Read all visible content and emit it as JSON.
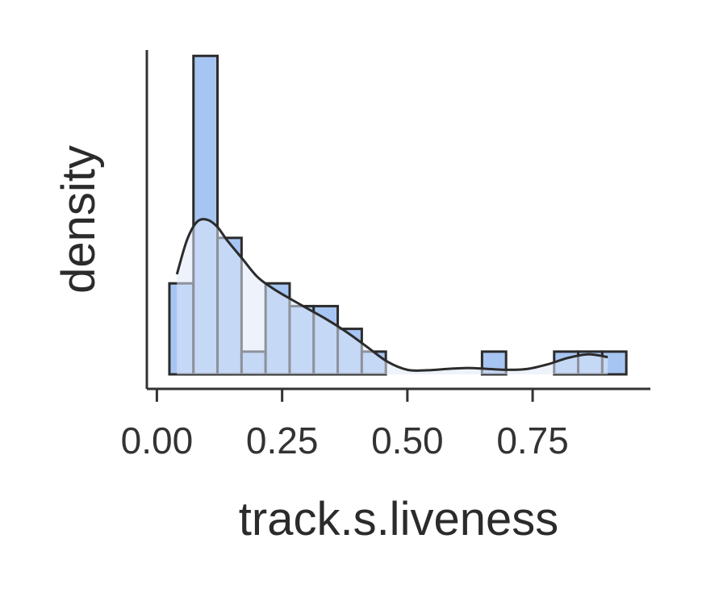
{
  "chart_data": {
    "type": "bar",
    "subtype": "histogram",
    "xlabel": "track.s.liveness",
    "ylabel": "density",
    "xlim": [
      -0.02,
      0.985
    ],
    "ylim": [
      0,
      7.2
    ],
    "x_ticks": [
      0.0,
      0.25,
      0.5,
      0.75
    ],
    "x_tick_labels": [
      "0.00",
      "0.25",
      "0.50",
      "0.75"
    ],
    "y_ticks_shown": false,
    "grid": false,
    "bar_color": "#a7c5f2",
    "edge_color": "#2b2b2b",
    "kde_fill_color": "#dfe7f7",
    "bins": [
      {
        "x0": 0.025,
        "x1": 0.073,
        "density": 2.0
      },
      {
        "x0": 0.073,
        "x1": 0.121,
        "density": 7.0
      },
      {
        "x0": 0.121,
        "x1": 0.169,
        "density": 3.0
      },
      {
        "x0": 0.169,
        "x1": 0.217,
        "density": 0.5
      },
      {
        "x0": 0.217,
        "x1": 0.265,
        "density": 2.0
      },
      {
        "x0": 0.265,
        "x1": 0.313,
        "density": 1.5
      },
      {
        "x0": 0.313,
        "x1": 0.361,
        "density": 1.5
      },
      {
        "x0": 0.361,
        "x1": 0.409,
        "density": 1.0
      },
      {
        "x0": 0.409,
        "x1": 0.457,
        "density": 0.5
      },
      {
        "x0": 0.457,
        "x1": 0.505,
        "density": 0.0
      },
      {
        "x0": 0.505,
        "x1": 0.553,
        "density": 0.0
      },
      {
        "x0": 0.553,
        "x1": 0.601,
        "density": 0.0
      },
      {
        "x0": 0.601,
        "x1": 0.649,
        "density": 0.0
      },
      {
        "x0": 0.649,
        "x1": 0.697,
        "density": 0.5
      },
      {
        "x0": 0.697,
        "x1": 0.745,
        "density": 0.0
      },
      {
        "x0": 0.745,
        "x1": 0.793,
        "density": 0.0
      },
      {
        "x0": 0.793,
        "x1": 0.841,
        "density": 0.5
      },
      {
        "x0": 0.841,
        "x1": 0.889,
        "density": 0.5
      },
      {
        "x0": 0.889,
        "x1": 0.937,
        "density": 0.5
      }
    ],
    "kde": {
      "x": [
        0.04,
        0.06,
        0.08,
        0.1,
        0.12,
        0.14,
        0.17,
        0.2,
        0.23,
        0.26,
        0.3,
        0.34,
        0.38,
        0.42,
        0.46,
        0.5,
        0.54,
        0.58,
        0.62,
        0.66,
        0.7,
        0.74,
        0.78,
        0.82,
        0.86,
        0.9
      ],
      "y": [
        2.2,
        2.95,
        3.35,
        3.4,
        3.25,
        2.95,
        2.55,
        2.15,
        1.9,
        1.7,
        1.45,
        1.2,
        0.92,
        0.6,
        0.28,
        0.1,
        0.09,
        0.12,
        0.14,
        0.12,
        0.1,
        0.12,
        0.22,
        0.36,
        0.44,
        0.38
      ]
    }
  }
}
